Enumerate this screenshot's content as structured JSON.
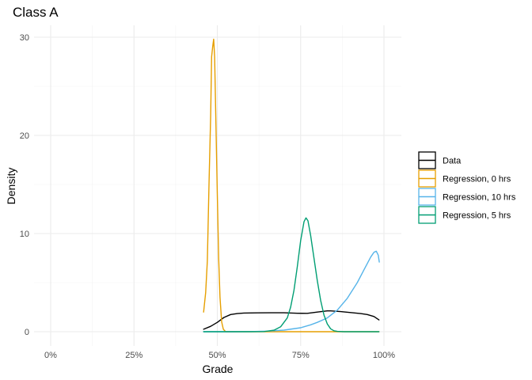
{
  "chart_data": {
    "type": "line",
    "title": "Class A",
    "xlabel": "Grade",
    "ylabel": "Density",
    "xlim": [
      0,
      100
    ],
    "ylim": [
      0,
      30
    ],
    "x_ticks": [
      {
        "value": 0,
        "label": "0%"
      },
      {
        "value": 25,
        "label": "25%"
      },
      {
        "value": 50,
        "label": "50%"
      },
      {
        "value": 75,
        "label": "75%"
      },
      {
        "value": 100,
        "label": "100%"
      }
    ],
    "y_ticks": [
      {
        "value": 0,
        "label": "0"
      },
      {
        "value": 10,
        "label": "10"
      },
      {
        "value": 20,
        "label": "20"
      },
      {
        "value": 30,
        "label": "30"
      }
    ],
    "grid": true,
    "legend_position": "right",
    "series": [
      {
        "name": "Data",
        "color": "#000000",
        "points": [
          [
            45.9,
            0.25
          ],
          [
            48,
            0.55
          ],
          [
            50,
            0.95
          ],
          [
            52,
            1.45
          ],
          [
            54,
            1.75
          ],
          [
            56,
            1.85
          ],
          [
            58,
            1.9
          ],
          [
            62,
            1.92
          ],
          [
            66,
            1.93
          ],
          [
            70,
            1.93
          ],
          [
            74,
            1.88
          ],
          [
            77,
            1.87
          ],
          [
            80,
            2.0
          ],
          [
            83,
            2.12
          ],
          [
            84,
            2.12
          ],
          [
            87,
            2.05
          ],
          [
            90,
            1.95
          ],
          [
            93,
            1.85
          ],
          [
            95,
            1.75
          ],
          [
            97,
            1.55
          ],
          [
            98.5,
            1.2
          ]
        ]
      },
      {
        "name": "Regression, 0 hrs",
        "color": "#E69F00",
        "points": [
          [
            45.9,
            2.0
          ],
          [
            46.5,
            4.0
          ],
          [
            47,
            7.2
          ],
          [
            47.5,
            15.0
          ],
          [
            48,
            22.0
          ],
          [
            48.3,
            28.0
          ],
          [
            48.6,
            29.0
          ],
          [
            48.9,
            29.8
          ],
          [
            49.2,
            28.0
          ],
          [
            49.6,
            21.0
          ],
          [
            50.0,
            14.0
          ],
          [
            50.4,
            7.5
          ],
          [
            50.8,
            3.5
          ],
          [
            51.3,
            1.0
          ],
          [
            51.8,
            0.25
          ],
          [
            52.5,
            0
          ],
          [
            55,
            0
          ],
          [
            60,
            0
          ],
          [
            70,
            0
          ],
          [
            80,
            0
          ],
          [
            90,
            0
          ],
          [
            98.5,
            0
          ]
        ]
      },
      {
        "name": "Regression, 10 hrs",
        "color": "#56B4E9",
        "points": [
          [
            45.9,
            0
          ],
          [
            55,
            0
          ],
          [
            60,
            0.02
          ],
          [
            65,
            0.06
          ],
          [
            70,
            0.16
          ],
          [
            75,
            0.4
          ],
          [
            78,
            0.7
          ],
          [
            80,
            0.95
          ],
          [
            83,
            1.4
          ],
          [
            86,
            2.2
          ],
          [
            89,
            3.4
          ],
          [
            92,
            5.0
          ],
          [
            94,
            6.3
          ],
          [
            96,
            7.6
          ],
          [
            97,
            8.1
          ],
          [
            97.7,
            8.2
          ],
          [
            98.3,
            7.8
          ],
          [
            98.6,
            7.1
          ]
        ]
      },
      {
        "name": "Regression, 5 hrs",
        "color": "#009E73",
        "points": [
          [
            45.9,
            0
          ],
          [
            60,
            0
          ],
          [
            64,
            0.02
          ],
          [
            67,
            0.15
          ],
          [
            69,
            0.5
          ],
          [
            71,
            1.4
          ],
          [
            72,
            2.5
          ],
          [
            73,
            4.2
          ],
          [
            74,
            6.6
          ],
          [
            75,
            9.3
          ],
          [
            76,
            11.2
          ],
          [
            76.6,
            11.6
          ],
          [
            77.2,
            11.3
          ],
          [
            78,
            9.8
          ],
          [
            79,
            7.5
          ],
          [
            80,
            5.2
          ],
          [
            81,
            3.2
          ],
          [
            82,
            1.7
          ],
          [
            83,
            0.8
          ],
          [
            84,
            0.3
          ],
          [
            85,
            0.1
          ],
          [
            86,
            0.03
          ],
          [
            88,
            0
          ],
          [
            98.5,
            0
          ]
        ]
      }
    ]
  }
}
